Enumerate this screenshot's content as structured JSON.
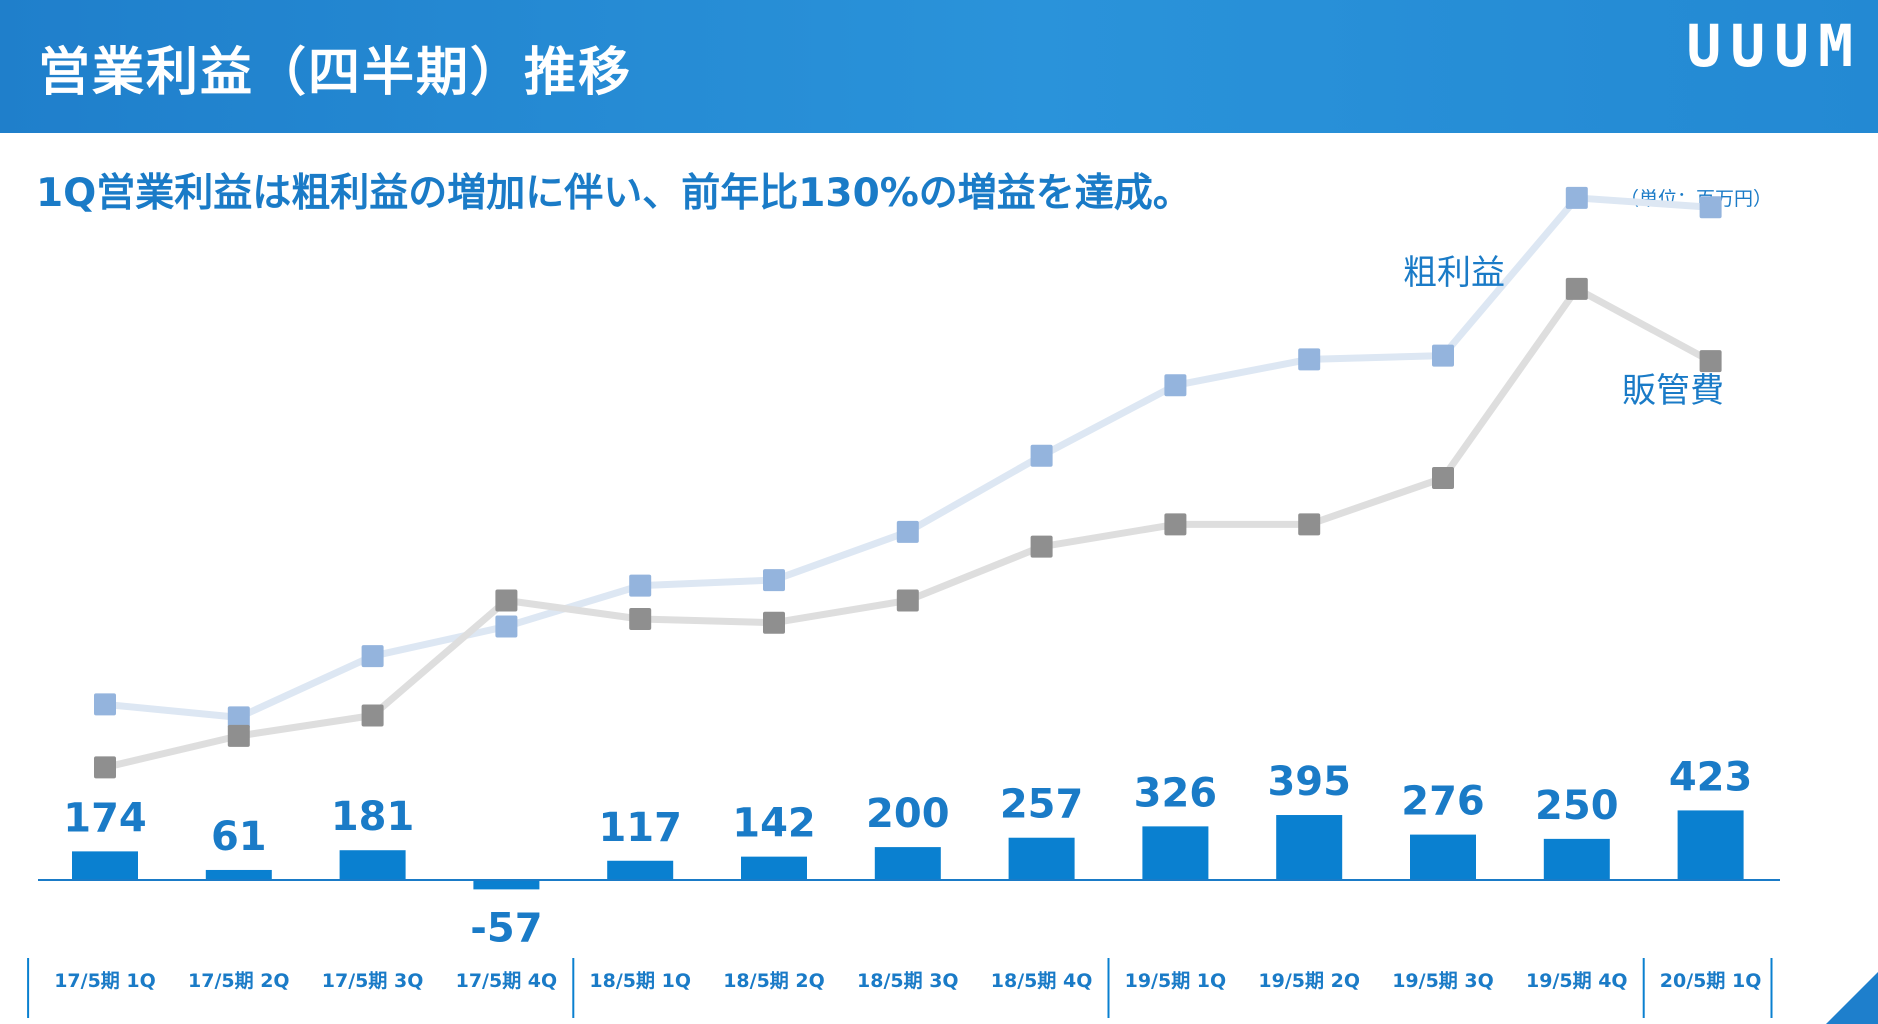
{
  "header": {
    "title": "営業利益（四半期）推移",
    "logo": "UUUM"
  },
  "subtitle": "1Q営業利益は粗利益の増加に伴い、前年比130%の増益を達成。",
  "unit_label": "（単位：百万円）",
  "colors": {
    "header_bg": "#2389d3",
    "bar": "#0a80d0",
    "text_blue": "#1a7bc7",
    "gross_line": "#dde7f3",
    "gross_marker": "#94b4dd",
    "sga_line": "#dedede",
    "sga_marker": "#8f8f8f"
  },
  "chart_data": {
    "type": "bar",
    "title": "営業利益（四半期）推移",
    "categories": [
      "17/5期 1Q",
      "17/5期 2Q",
      "17/5期 3Q",
      "17/5期 4Q",
      "18/5期 1Q",
      "18/5期 2Q",
      "18/5期 3Q",
      "18/5期 4Q",
      "19/5期 1Q",
      "19/5期 2Q",
      "19/5期 3Q",
      "19/5期 4Q",
      "20/5期 1Q"
    ],
    "series": [
      {
        "name": "営業利益",
        "type": "bar",
        "values": [
          174,
          61,
          181,
          -57,
          117,
          142,
          200,
          257,
          326,
          395,
          276,
          250,
          423
        ],
        "labels": [
          "174",
          "61",
          "181",
          "-57",
          "117",
          "142",
          "200",
          "257",
          "326",
          "395",
          "276",
          "250",
          "423"
        ]
      },
      {
        "name": "粗利益",
        "type": "line",
        "values": [
          2300,
          2230,
          2560,
          2720,
          2940,
          2970,
          3230,
          3640,
          4020,
          4160,
          4180,
          5030,
          4980
        ]
      },
      {
        "name": "販管費",
        "type": "line",
        "values": [
          1960,
          2130,
          2240,
          2860,
          2760,
          2740,
          2860,
          3150,
          3270,
          3270,
          3520,
          4540,
          4150
        ]
      }
    ],
    "line_labels": {
      "gross": "粗利益",
      "sga": "販管費"
    },
    "ylim": [
      -150,
      5200
    ],
    "group_separators_after": [
      3,
      7,
      11
    ],
    "xlabel": "",
    "ylabel": ""
  }
}
